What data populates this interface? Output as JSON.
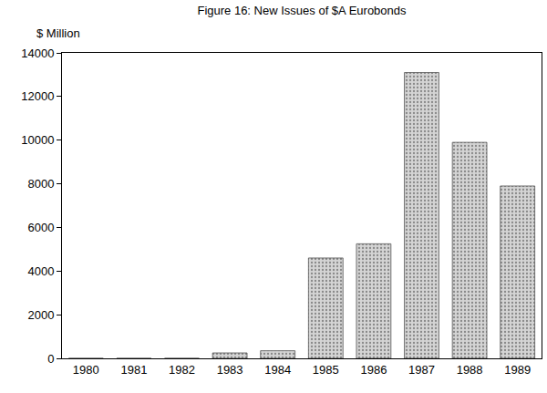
{
  "chart_data": {
    "type": "bar",
    "title": "Figure 16: New Issues of $A Eurobonds",
    "y_label": "$ Million",
    "categories": [
      "1980",
      "1981",
      "1982",
      "1983",
      "1984",
      "1985",
      "1986",
      "1987",
      "1988",
      "1989"
    ],
    "values": [
      0,
      0,
      0,
      250,
      350,
      4600,
      5250,
      13100,
      9900,
      7900
    ],
    "color": "#d4d4d4",
    "ylim": [
      0,
      14000
    ],
    "yticks": [
      0,
      2000,
      4000,
      6000,
      8000,
      10000,
      12000,
      14000
    ],
    "grid": false
  }
}
